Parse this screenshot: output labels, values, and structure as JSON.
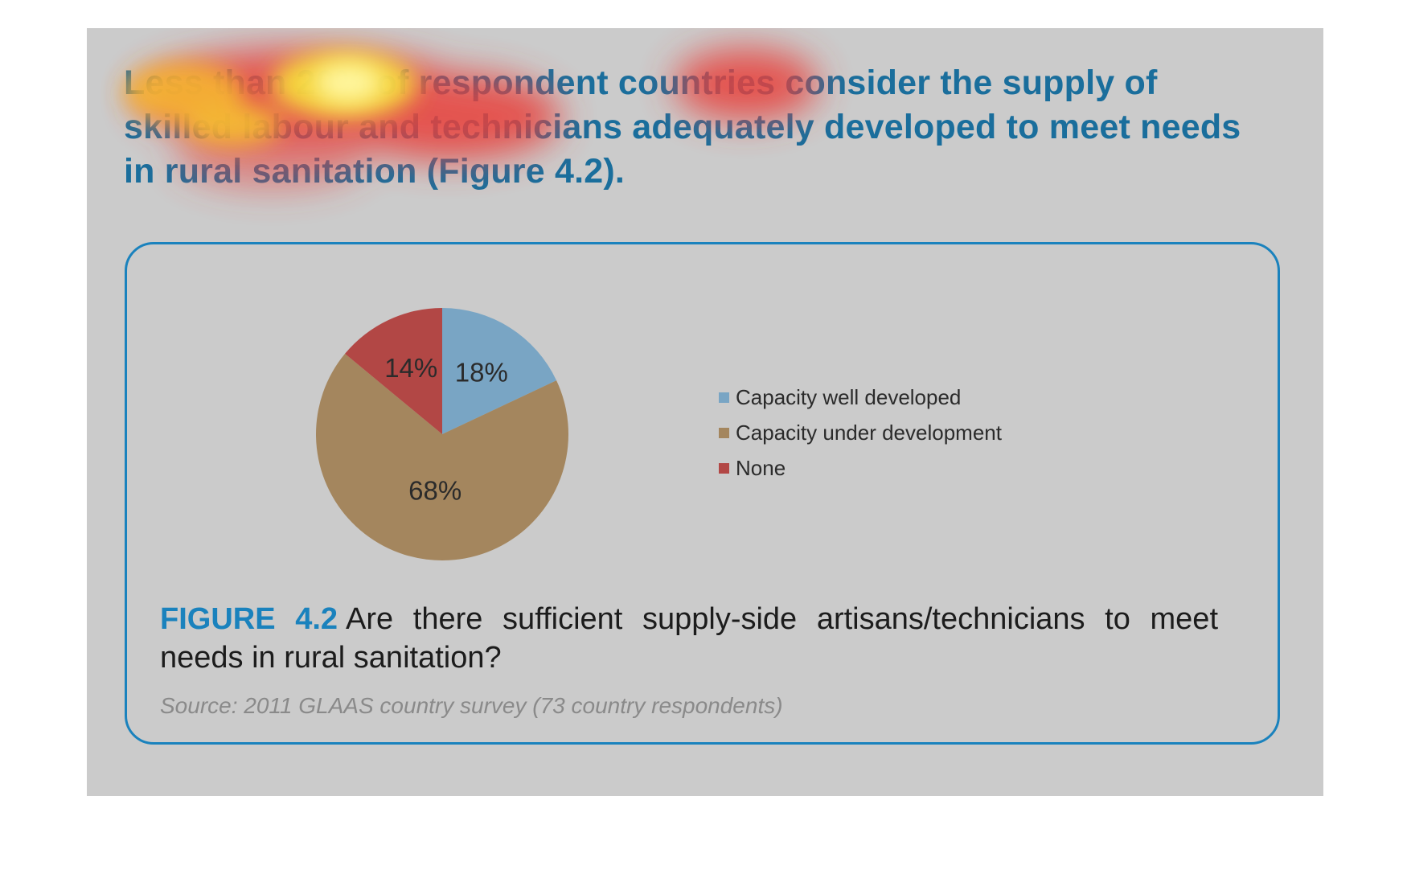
{
  "headline": "Less than 20% of respondent countries consider the supply of skilled labour and technicians adequately developed to meet needs in rural sanitation (Figure 4.2).",
  "figure": {
    "label": "FIGURE 4.2",
    "caption": "Are there sufficient supply-side artisans/technicians to meet needs in rural sanitation?",
    "source": "Source: 2011 GLAAS country survey (73 country respondents)"
  },
  "colors": {
    "panel": "#cbcbcb",
    "headline": "#1a6e9c",
    "accent": "#1a82bd",
    "slice_well_developed": "#79a5c4",
    "slice_under_development": "#a4865e",
    "slice_none": "#b24745"
  },
  "chart_data": {
    "type": "pie",
    "title": "",
    "legend_position": "right",
    "slices": [
      {
        "label": "Capacity well developed",
        "value": 18,
        "display": "18%",
        "color": "#79a5c4"
      },
      {
        "label": "Capacity under development",
        "value": 68,
        "display": "68%",
        "color": "#a4865e"
      },
      {
        "label": "None",
        "value": 14,
        "display": "14%",
        "color": "#b24745"
      }
    ]
  }
}
